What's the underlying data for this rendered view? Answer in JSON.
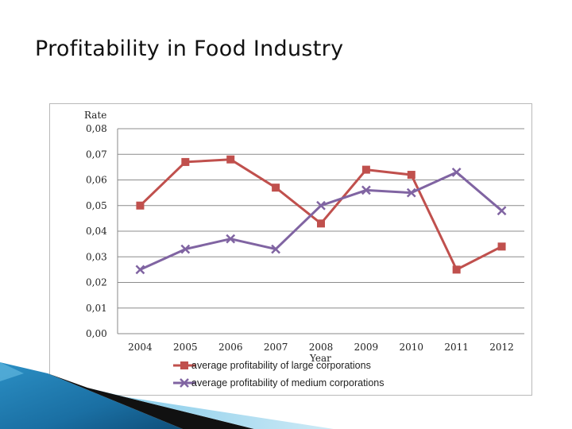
{
  "slide": {
    "title": "Profitability in Food Industry"
  },
  "chart_data": {
    "type": "line",
    "title": "",
    "xlabel": "Year",
    "ylabel": "Rate",
    "categories": [
      "2004",
      "2005",
      "2006",
      "2007",
      "2008",
      "2009",
      "2010",
      "2011",
      "2012"
    ],
    "ylim": [
      0,
      0.08
    ],
    "yticks": [
      "0,00",
      "0,01",
      "0,02",
      "0,03",
      "0,04",
      "0,05",
      "0,06",
      "0,07",
      "0,08"
    ],
    "grid": true,
    "legend_position": "bottom",
    "series": [
      {
        "name": "average profitability of large corporations",
        "color": "#c0504d",
        "marker": "square",
        "values": [
          0.05,
          0.067,
          0.068,
          0.057,
          0.043,
          0.064,
          0.062,
          0.025,
          0.034
        ]
      },
      {
        "name": "average profitability of medium corporations",
        "color": "#8064a2",
        "marker": "x",
        "values": [
          0.025,
          0.033,
          0.037,
          0.033,
          0.05,
          0.056,
          0.055,
          0.063,
          0.048
        ]
      }
    ]
  }
}
